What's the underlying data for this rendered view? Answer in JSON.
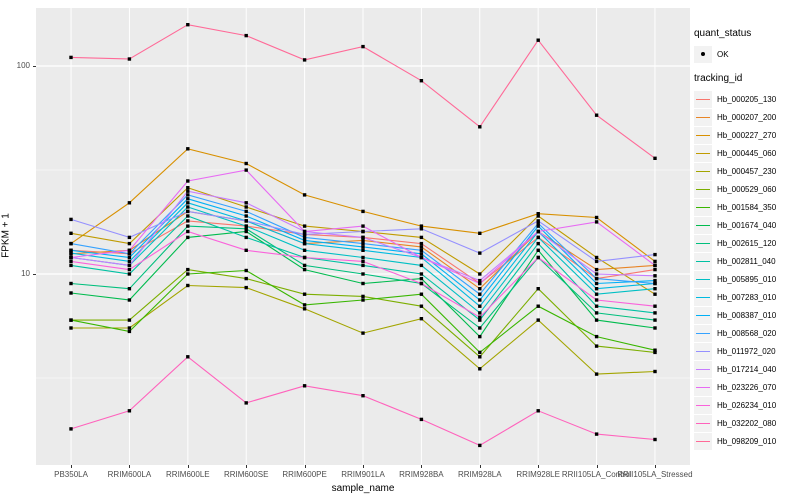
{
  "figure": {
    "panel_bg": "#EBEBEB",
    "grid_color": "#FFFFFF",
    "tick_color": "#333333",
    "tick_text_color": "#4D4D4D",
    "point_color": "#000000"
  },
  "legend": {
    "quant_status_title": "quant_status",
    "quant_status_items": [
      {
        "label": "OK",
        "symbol": "black-point"
      }
    ],
    "tracking_id_title": "tracking_id"
  },
  "chart_data": {
    "type": "line",
    "title": "",
    "xlabel": "sample_name",
    "ylabel": "FPKM + 1",
    "y_scale": "log10",
    "ylim": [
      1.2,
      190
    ],
    "grid": true,
    "legend_position": "right",
    "y_ticks": [
      {
        "value": 10,
        "label": "10"
      },
      {
        "value": 100,
        "label": "100"
      }
    ],
    "y_minor": [
      3.1623,
      31.623
    ],
    "x_categories": [
      "PB350LA",
      "RRIM600LA",
      "RRIM600LE",
      "RRIM600SE",
      "RRIM600PE",
      "RRIM901LA",
      "RRIM928BA",
      "RRIM928LA",
      "RRIM928LE",
      "RRII105LA_Control",
      "RRII105LA_Stressed"
    ],
    "series": [
      {
        "name": "Hb_000205_130",
        "color": "#F8766D",
        "values": [
          13,
          12.5,
          18,
          17,
          15.5,
          15,
          14,
          9.0,
          15,
          9.5,
          10.5
        ]
      },
      {
        "name": "Hb_000207_200",
        "color": "#E88526",
        "values": [
          12.5,
          13,
          20,
          18,
          14,
          14.5,
          13.5,
          8.5,
          16,
          10.5,
          11
        ]
      },
      {
        "name": "Hb_000227_270",
        "color": "#D89000",
        "values": [
          14,
          22,
          40,
          34,
          24,
          20,
          17,
          15.7,
          19.5,
          18.7,
          11.5
        ]
      },
      {
        "name": "Hb_000445_060",
        "color": "#C09B00",
        "values": [
          15.7,
          14,
          26,
          21,
          17,
          16,
          15,
          10,
          19,
          12,
          8
        ]
      },
      {
        "name": "Hb_000457_230",
        "color": "#A3A500",
        "values": [
          5.5,
          5.5,
          8.8,
          8.6,
          6.8,
          5.2,
          6.1,
          3.5,
          6.0,
          3.3,
          3.4
        ]
      },
      {
        "name": "Hb_000529_060",
        "color": "#7CAE00",
        "values": [
          6.0,
          6.0,
          10.5,
          9.5,
          8.0,
          7.8,
          7.0,
          4.0,
          8.5,
          4.5,
          4.2
        ]
      },
      {
        "name": "Hb_001584_350",
        "color": "#39B600",
        "values": [
          6.0,
          5.3,
          10,
          10.4,
          7.1,
          7.5,
          8.0,
          4.2,
          7.0,
          5.0,
          4.3
        ]
      },
      {
        "name": "Hb_001674_040",
        "color": "#00BB4E",
        "values": [
          8.1,
          7.5,
          15,
          16,
          10.5,
          9.0,
          9.5,
          5.0,
          13,
          6.0,
          5.5
        ]
      },
      {
        "name": "Hb_002615_120",
        "color": "#00BF7D",
        "values": [
          9.0,
          8.5,
          17,
          16.5,
          11,
          10,
          9.0,
          5.5,
          12,
          6.5,
          6.0
        ]
      },
      {
        "name": "Hb_002811_040",
        "color": "#00C1A3",
        "values": [
          11,
          10,
          19,
          15,
          12,
          11,
          10,
          6.0,
          14,
          7.0,
          6.5
        ]
      },
      {
        "name": "Hb_005895_010",
        "color": "#00BFC4",
        "values": [
          12,
          11,
          21,
          17,
          13,
          12,
          11,
          6.5,
          15,
          8.0,
          8.5
        ]
      },
      {
        "name": "Hb_007283_010",
        "color": "#00BAE0",
        "values": [
          12.6,
          11.5,
          22,
          18,
          14,
          13,
          12,
          7.0,
          16,
          8.5,
          9.0
        ]
      },
      {
        "name": "Hb_008387_010",
        "color": "#00B0F6",
        "values": [
          13,
          12,
          23,
          19,
          14.5,
          13.5,
          12.5,
          7.5,
          17,
          9.0,
          9.3
        ]
      },
      {
        "name": "Hb_008568_020",
        "color": "#35A2FF",
        "values": [
          14,
          12.5,
          24,
          20,
          15,
          14,
          13,
          8.0,
          17.5,
          9.5,
          9.0
        ]
      },
      {
        "name": "Hb_011972_020",
        "color": "#9590FF",
        "values": [
          18.3,
          15,
          20,
          18,
          15.5,
          16,
          16.5,
          12.6,
          18,
          11.5,
          12.4
        ]
      },
      {
        "name": "Hb_017214_040",
        "color": "#C77CFF",
        "values": [
          12,
          11,
          25,
          22,
          16,
          15,
          12,
          9.3,
          16,
          10,
          9.8
        ]
      },
      {
        "name": "Hb_023226_070",
        "color": "#E76BF3",
        "values": [
          12,
          13,
          28,
          31.6,
          16,
          17,
          12,
          9.0,
          16,
          17.8,
          11
        ]
      },
      {
        "name": "Hb_026234_010",
        "color": "#FA62DB",
        "values": [
          11.5,
          10.5,
          16,
          13,
          12,
          11.5,
          9.0,
          6.2,
          12,
          7.5,
          7.0
        ]
      },
      {
        "name": "Hb_032202_080",
        "color": "#FF62BC",
        "values": [
          1.8,
          2.2,
          4.0,
          2.4,
          2.9,
          2.6,
          2.0,
          1.5,
          2.2,
          1.7,
          1.6
        ]
      },
      {
        "name": "Hb_098209_010",
        "color": "#FF6A98",
        "values": [
          110,
          108,
          158,
          140,
          107,
          124,
          85,
          51,
          133,
          58,
          36
        ]
      }
    ]
  }
}
